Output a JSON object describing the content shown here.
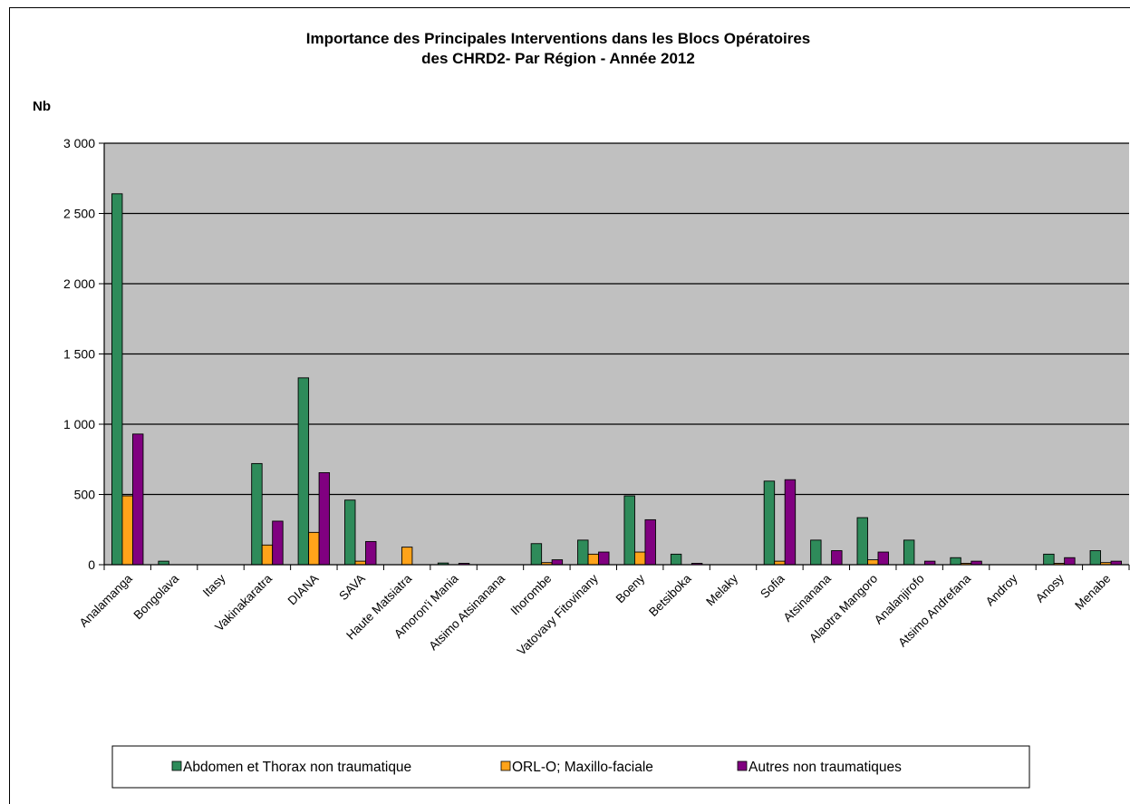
{
  "chart_data": {
    "type": "bar",
    "title": "Importance des Principales Interventions dans les Blocs Opératoires",
    "subtitle": "des CHRD2- Par Région -  Année 2012",
    "ylabel": "Nb",
    "xlabel": "",
    "ylim": [
      0,
      3000
    ],
    "yticks": [
      0,
      500,
      1000,
      1500,
      2000,
      2500,
      3000
    ],
    "ytick_labels": [
      "0",
      "500",
      "1 000",
      "1 500",
      "2 000",
      "2 500",
      "3 000"
    ],
    "grid": true,
    "legend_position": "bottom",
    "categories": [
      "Analamanga",
      "Bongolava",
      "Itasy",
      "Vakinakaratra",
      "DIANA",
      "SAVA",
      "Haute Matsiatra",
      "Amoron'i Mania",
      "Atsimo Atsinanana",
      "Ihorombe",
      "Vatovavy Fitovinany",
      "Boeny",
      "Betsiboka",
      "Melaky",
      "Sofia",
      "Atsinanana",
      "Alaotra Mangoro",
      "Analanjirofo",
      "Atsimo Andrefana",
      "Androy",
      "Anosy",
      "Menabe"
    ],
    "series": [
      {
        "name": "Abdomen et Thorax non traumatique",
        "color": "#2e8b5a",
        "values": [
          2640,
          25,
          0,
          720,
          1330,
          460,
          0,
          12,
          0,
          150,
          175,
          490,
          75,
          0,
          595,
          175,
          335,
          175,
          50,
          0,
          75,
          100
        ]
      },
      {
        "name": "ORL-O; Maxillo-faciale",
        "color": "#ffa31a",
        "values": [
          490,
          0,
          0,
          140,
          230,
          25,
          125,
          0,
          0,
          15,
          75,
          90,
          0,
          0,
          25,
          0,
          35,
          0,
          10,
          0,
          10,
          15
        ]
      },
      {
        "name": "Autres non traumatiques",
        "color": "#800080",
        "values": [
          930,
          0,
          0,
          310,
          655,
          165,
          0,
          10,
          0,
          35,
          90,
          320,
          10,
          0,
          605,
          100,
          90,
          25,
          25,
          0,
          50,
          25
        ]
      }
    ]
  }
}
